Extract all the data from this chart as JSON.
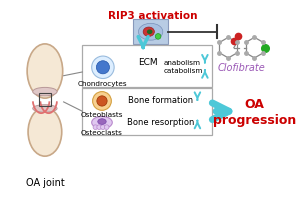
{
  "bg_color": "#ffffff",
  "title_rip3": "RIP3 activation",
  "title_rip3_color": "#cc0000",
  "clofibrate_label": "Clofibrate",
  "clofibrate_color": "#9b59b6",
  "oa_joint_label": "OA joint",
  "oa_progression_label": "OA\nprogression",
  "oa_progression_color": "#cc0000",
  "box1_cell_label": "Chondrocytes",
  "box2_cell_label": "Osteoblasts",
  "box3_cell_label": "Osteoclasts",
  "ecm_label": "ECM",
  "anabolism_label": "anabolism",
  "catabolism_label": "catabolism",
  "bone_formation_label": "Bone formation",
  "bone_resorption_label": "Bone resorption",
  "cyan": "#4dc8d8",
  "border_color": "#aaaaaa"
}
